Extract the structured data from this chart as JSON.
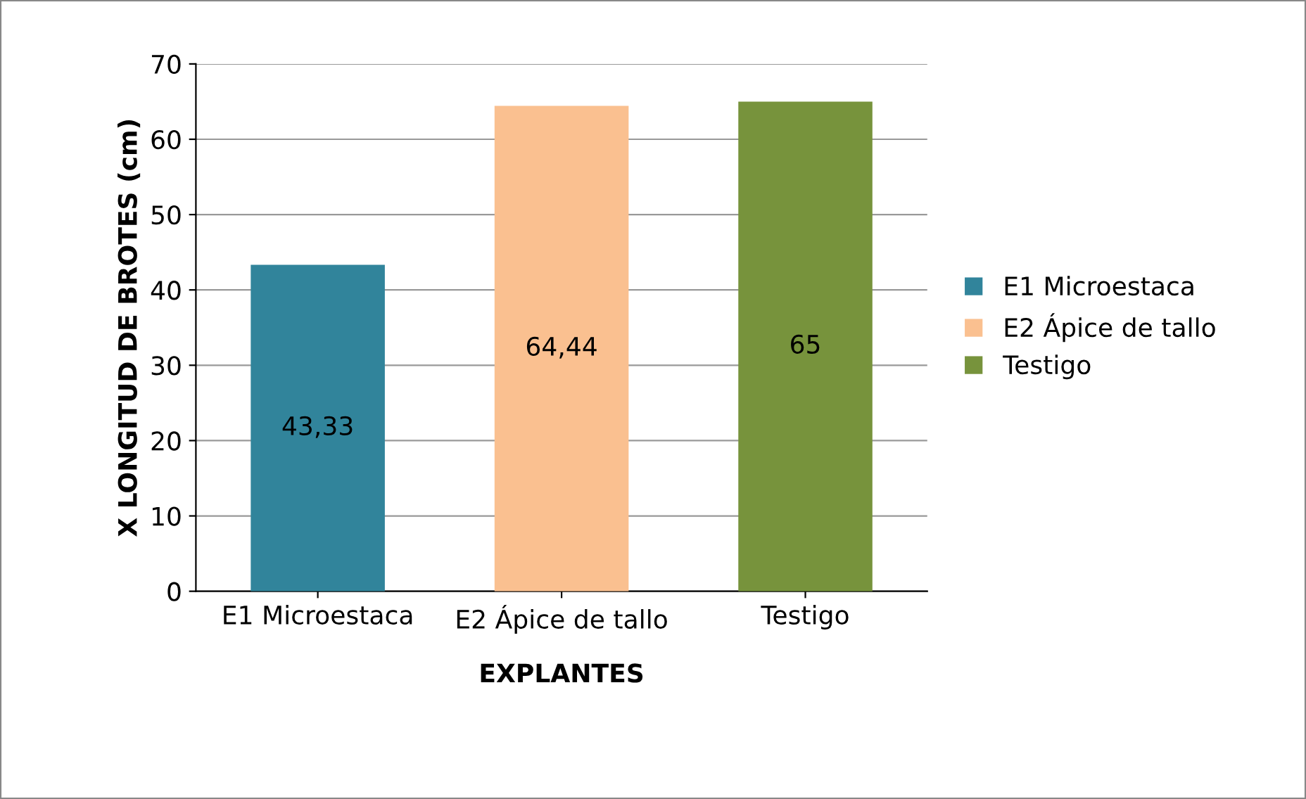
{
  "chart_data": {
    "type": "bar",
    "xlabel": "EXPLANTES",
    "ylabel": "X LONGITUD DE BROTES (cm)",
    "categories": [
      "E1 Microestaca",
      "E2 Ápice de tallo",
      "Testigo"
    ],
    "series": [
      {
        "name": "E1 Microestaca",
        "color": "#31849b",
        "values": [
          43.33,
          null,
          null
        ],
        "value_labels": [
          "43,33",
          null,
          null
        ]
      },
      {
        "name": "E2 Ápice de tallo",
        "color": "#fac090",
        "values": [
          null,
          64.44,
          null
        ],
        "value_labels": [
          null,
          "64,44",
          null
        ]
      },
      {
        "name": "Testigo",
        "color": "#77933c",
        "values": [
          null,
          null,
          65
        ],
        "value_labels": [
          null,
          null,
          "65"
        ]
      }
    ],
    "ylim": [
      0,
      70
    ],
    "yticks": [
      0,
      10,
      20,
      30,
      40,
      50,
      60,
      70
    ],
    "grid": "y",
    "legend": "right"
  }
}
